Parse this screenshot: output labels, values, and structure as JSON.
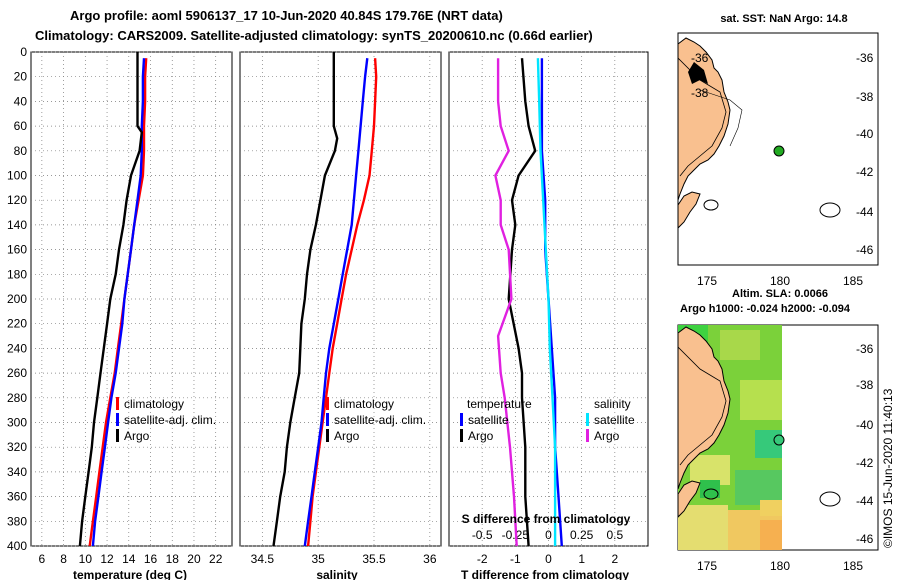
{
  "header": {
    "line1": "Argo profile: aoml 5906137_17 10-Jun-2020 40.84S 179.76E (NRT data)",
    "line2": "Climatology: CARS2009. Satellite-adjusted climatology: synTS_20200610.nc (0.66d earlier)"
  },
  "colors": {
    "climatology": "#ff0000",
    "satellite": "#0000ff",
    "argo": "#000000",
    "sat_salinity": "#00e5ff",
    "argo_salinity": "#e020e0",
    "land": "#f9c08f"
  },
  "chart_data": [
    {
      "type": "line",
      "name": "temperature",
      "xlabel": "temperature (deg C)",
      "xlim": [
        5,
        23.5
      ],
      "xticks": [
        "6",
        "8",
        "10",
        "12",
        "14",
        "16",
        "18",
        "20",
        "22"
      ],
      "ylim": [
        0,
        400
      ],
      "yticks": [
        "0",
        "20",
        "40",
        "60",
        "80",
        "100",
        "120",
        "140",
        "160",
        "180",
        "200",
        "220",
        "240",
        "260",
        "280",
        "300",
        "320",
        "340",
        "360",
        "380",
        "400"
      ],
      "legend": [
        "climatology",
        "satellite-adj. clim.",
        "Argo"
      ],
      "series": [
        {
          "name": "climatology",
          "depth": [
            5,
            20,
            40,
            60,
            80,
            100,
            120,
            140,
            160,
            180,
            200,
            220,
            240,
            260,
            280,
            300,
            320,
            340,
            360,
            380,
            400
          ],
          "values": [
            15.6,
            15.5,
            15.5,
            15.4,
            15.4,
            15.3,
            14.9,
            14.5,
            14.2,
            13.9,
            13.6,
            13.3,
            13.0,
            12.7,
            12.3,
            11.9,
            11.6,
            11.3,
            11.0,
            10.7,
            10.4
          ]
        },
        {
          "name": "satellite-adj. clim.",
          "depth": [
            5,
            20,
            40,
            60,
            80,
            100,
            120,
            140,
            160,
            180,
            200,
            220,
            240,
            260,
            280,
            300,
            320,
            340,
            360,
            380,
            400
          ],
          "values": [
            15.4,
            15.3,
            15.3,
            15.2,
            15.2,
            15.1,
            14.8,
            14.5,
            14.2,
            13.9,
            13.6,
            13.4,
            13.1,
            12.8,
            12.4,
            12.1,
            11.8,
            11.5,
            11.2,
            10.9,
            10.7
          ]
        },
        {
          "name": "Argo",
          "depth": [
            0,
            20,
            40,
            60,
            65,
            80,
            100,
            120,
            140,
            160,
            180,
            200,
            220,
            240,
            260,
            280,
            300,
            320,
            340,
            360,
            380,
            400
          ],
          "values": [
            14.8,
            14.8,
            14.8,
            14.8,
            15.2,
            15.0,
            14.2,
            13.8,
            13.5,
            13.1,
            12.8,
            12.3,
            12.0,
            11.7,
            11.4,
            11.1,
            10.8,
            10.6,
            10.3,
            10.0,
            9.7,
            9.5
          ]
        }
      ]
    },
    {
      "type": "line",
      "name": "salinity",
      "xlabel": "salinity",
      "xlim": [
        34.3,
        36.1
      ],
      "xticks": [
        "34.5",
        "35",
        "35.5",
        "36"
      ],
      "ylim": [
        0,
        400
      ],
      "legend": [
        "climatology",
        "satellite-adj. clim.",
        "Argo"
      ],
      "series": [
        {
          "name": "climatology",
          "depth": [
            5,
            20,
            40,
            60,
            80,
            100,
            120,
            140,
            160,
            180,
            200,
            220,
            240,
            260,
            280,
            300,
            320,
            340,
            360,
            380,
            400
          ],
          "values": [
            35.51,
            35.52,
            35.51,
            35.5,
            35.48,
            35.46,
            35.41,
            35.35,
            35.3,
            35.25,
            35.21,
            35.17,
            35.13,
            35.1,
            35.07,
            35.04,
            35.01,
            34.98,
            34.95,
            34.93,
            34.91
          ]
        },
        {
          "name": "satellite-adj. clim.",
          "depth": [
            5,
            20,
            40,
            60,
            80,
            100,
            120,
            140,
            160,
            180,
            200,
            220,
            240,
            260,
            280,
            300,
            320,
            340,
            360,
            380,
            400
          ],
          "values": [
            35.44,
            35.42,
            35.4,
            35.38,
            35.36,
            35.34,
            35.32,
            35.3,
            35.26,
            35.22,
            35.18,
            35.14,
            35.1,
            35.07,
            35.05,
            35.03,
            35.0,
            34.97,
            34.94,
            34.91,
            34.88
          ]
        },
        {
          "name": "Argo",
          "depth": [
            0,
            20,
            40,
            60,
            70,
            80,
            100,
            120,
            140,
            160,
            180,
            200,
            220,
            240,
            260,
            280,
            300,
            320,
            340,
            360,
            380,
            400
          ],
          "values": [
            35.14,
            35.14,
            35.14,
            35.14,
            35.17,
            35.15,
            35.06,
            35.02,
            34.98,
            34.93,
            34.9,
            34.88,
            34.85,
            34.84,
            34.83,
            34.79,
            34.75,
            34.72,
            34.7,
            34.66,
            34.63,
            34.6
          ]
        }
      ]
    },
    {
      "type": "line",
      "name": "difference",
      "xlabel": "T difference from climatology",
      "xlabel_top": "S difference from climatology",
      "xlim": [
        -3,
        3
      ],
      "xticks": [
        "-2",
        "-1",
        "0",
        "1",
        "2"
      ],
      "sticks": [
        "-0.5",
        "-0.25",
        "0",
        "0.25",
        "0.5"
      ],
      "ylim": [
        0,
        400
      ],
      "legend_temp_title": "temperature",
      "legend_sal_title": "salinity",
      "legend_labels": [
        "satellite",
        "Argo"
      ],
      "series": [
        {
          "name": "T satellite",
          "depth": [
            5,
            40,
            80,
            120,
            160,
            200,
            240,
            280,
            320,
            360,
            400
          ],
          "values": [
            -0.2,
            -0.2,
            -0.2,
            -0.1,
            -0.1,
            0.0,
            0.1,
            0.2,
            0.2,
            0.3,
            0.4
          ]
        },
        {
          "name": "T Argo",
          "depth": [
            5,
            40,
            60,
            80,
            100,
            120,
            140,
            160,
            200,
            240,
            260,
            280,
            320,
            360,
            400
          ],
          "values": [
            -0.8,
            -0.7,
            -0.6,
            -0.4,
            -0.9,
            -1.1,
            -1.0,
            -1.1,
            -1.2,
            -0.9,
            -0.8,
            -0.8,
            -0.7,
            -0.7,
            -0.6
          ]
        },
        {
          "name": "S satellite",
          "depth": [
            5,
            40,
            80,
            120,
            160,
            200,
            240,
            280,
            320,
            360,
            400
          ],
          "values": [
            -0.08,
            -0.07,
            -0.06,
            -0.04,
            -0.02,
            0.0,
            0.01,
            0.03,
            0.05,
            0.05,
            0.05
          ]
        },
        {
          "name": "S Argo",
          "depth": [
            5,
            40,
            60,
            80,
            100,
            120,
            140,
            160,
            200,
            230,
            260,
            280,
            320,
            360,
            400
          ],
          "values": [
            -0.38,
            -0.38,
            -0.36,
            -0.3,
            -0.4,
            -0.36,
            -0.36,
            -0.3,
            -0.28,
            -0.38,
            -0.36,
            -0.33,
            -0.29,
            -0.26,
            -0.24
          ]
        }
      ]
    }
  ],
  "maps": {
    "top_title": "sat. SST: NaN Argo: 14.8",
    "mid_title1": "Altim. SLA: 0.0066",
    "mid_title2": "Argo h1000: -0.024 h2000: -0.094",
    "lat_ticks": [
      "-36",
      "-38",
      "-40",
      "-42",
      "-44",
      "-46"
    ],
    "lon_ticks": [
      "175",
      "180",
      "185"
    ]
  },
  "footer": "©IMOS 15-Jun-2020 11:40:13"
}
